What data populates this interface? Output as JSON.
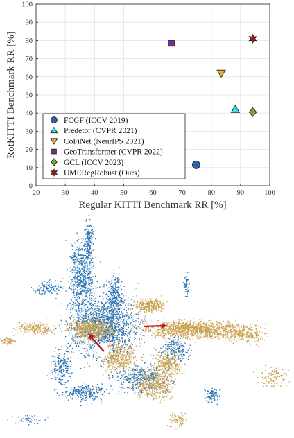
{
  "chart_data": {
    "type": "scatter",
    "title": "",
    "xlabel": "Regular KITTI Benchmark RR [%]",
    "ylabel": "RotKITTI Benchmark RR [%]",
    "xlim": [
      20,
      100
    ],
    "ylim": [
      0,
      100
    ],
    "xticks": [
      "20",
      "30",
      "40",
      "50",
      "60",
      "70",
      "80",
      "90",
      "100"
    ],
    "yticks": [
      "0",
      "10",
      "20",
      "30",
      "40",
      "50",
      "60",
      "70",
      "80",
      "90",
      "100"
    ],
    "grid": true,
    "legend_position": "bottom-left",
    "series": [
      {
        "name": "FCGF (ICCV 2019)",
        "marker": "circle",
        "color": "#2f64a8",
        "x": 74.8,
        "y": 11.5
      },
      {
        "name": "Predetor (CVPR 2021)",
        "marker": "triangle-up",
        "color": "#33e0ee",
        "x": 88.2,
        "y": 42.0
      },
      {
        "name": "CoFiNet (NeurIPS 2021)",
        "marker": "triangle-down",
        "color": "#e8b02a",
        "x": 83.4,
        "y": 62.0
      },
      {
        "name": "GeoTransformer (CVPR 2022)",
        "marker": "square",
        "color": "#7b2d8e",
        "x": 66.3,
        "y": 78.5
      },
      {
        "name": "GCL (ICCV 2023)",
        "marker": "diamond",
        "color": "#78a832",
        "x": 94.2,
        "y": 40.5
      },
      {
        "name": "UMERegRobust (Ours)",
        "marker": "hexagram",
        "color": "#b0141e",
        "x": 94.2,
        "y": 81.0
      }
    ]
  }
}
